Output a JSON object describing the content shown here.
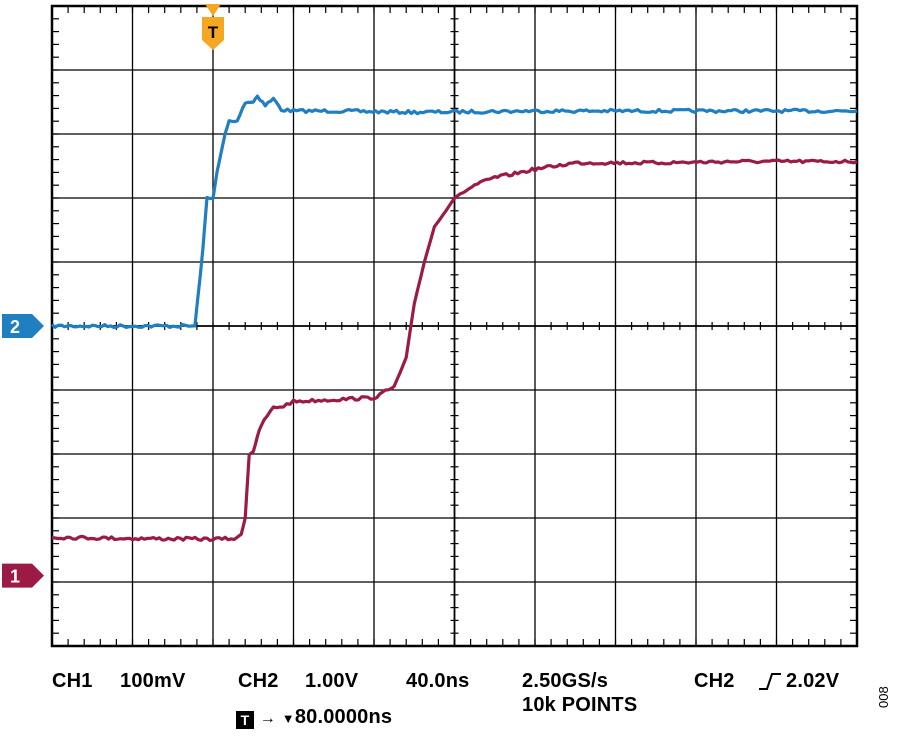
{
  "readouts": {
    "ch1_label": "CH1",
    "ch1_scale": "100mV",
    "ch2_label": "CH2",
    "ch2_scale": "1.00V",
    "timebase": "40.0ns",
    "sample_rate": "2.50GS/s",
    "record_length": "10k POINTS",
    "trigger_source": "CH2",
    "trigger_level": "2.02V",
    "trigger_badge": "T",
    "trigger_arrow": "→",
    "trigger_marker": "▼",
    "trigger_position": "80.0000ns"
  },
  "figure_id": "008",
  "colors": {
    "ch1": "#9b1b45",
    "ch2": "#1f7fc0",
    "trigger": "#f5a623",
    "grid": "#000000",
    "background": "#ffffff"
  },
  "chart_data": {
    "type": "line",
    "title": "",
    "xlabel": "",
    "ylabel": "",
    "x_unit": "ns",
    "xlim": [
      -80,
      320
    ],
    "ylim": [
      -5,
      5
    ],
    "divisions": {
      "x": 10,
      "y": 10
    },
    "grid": true,
    "trigger": {
      "marker_label": "T",
      "time": 0
    },
    "channel_markers": [
      {
        "label": "2",
        "level_div": 0,
        "color": "#1f7fc0"
      },
      {
        "label": "1",
        "level_div": -3.9,
        "color": "#9b1b45"
      }
    ],
    "series": [
      {
        "name": "",
        "channel": "CH2",
        "color": "#1f7fc0",
        "x": [
          -80,
          -60,
          -40,
          -20,
          -9,
          -5,
          -3,
          0,
          2,
          6,
          8,
          12,
          16,
          20,
          22,
          26,
          30,
          34,
          40,
          60,
          100,
          160,
          220,
          320
        ],
        "y_div": [
          0,
          0,
          0,
          0,
          0,
          1.2,
          2.0,
          2.0,
          2.4,
          3.0,
          3.2,
          3.2,
          3.5,
          3.5,
          3.6,
          3.45,
          3.55,
          3.38,
          3.36,
          3.36,
          3.34,
          3.36,
          3.36,
          3.36
        ]
      },
      {
        "name": "",
        "channel": "CH1",
        "color": "#9b1b45",
        "x": [
          -80,
          -40,
          0,
          12,
          14,
          16,
          18,
          20,
          22,
          24,
          27,
          30,
          35,
          40,
          60,
          80,
          90,
          96,
          100,
          105,
          110,
          120,
          130,
          140,
          150,
          160,
          180,
          220,
          260,
          320
        ],
        "y_div": [
          -3.3,
          -3.32,
          -3.33,
          -3.32,
          -3.25,
          -3.0,
          -2.0,
          -1.95,
          -1.75,
          -1.55,
          -1.4,
          -1.28,
          -1.25,
          -1.18,
          -1.15,
          -1.12,
          -0.95,
          -0.5,
          0.35,
          1.0,
          1.55,
          2.0,
          2.2,
          2.32,
          2.38,
          2.45,
          2.55,
          2.55,
          2.57,
          2.57
        ]
      }
    ]
  }
}
